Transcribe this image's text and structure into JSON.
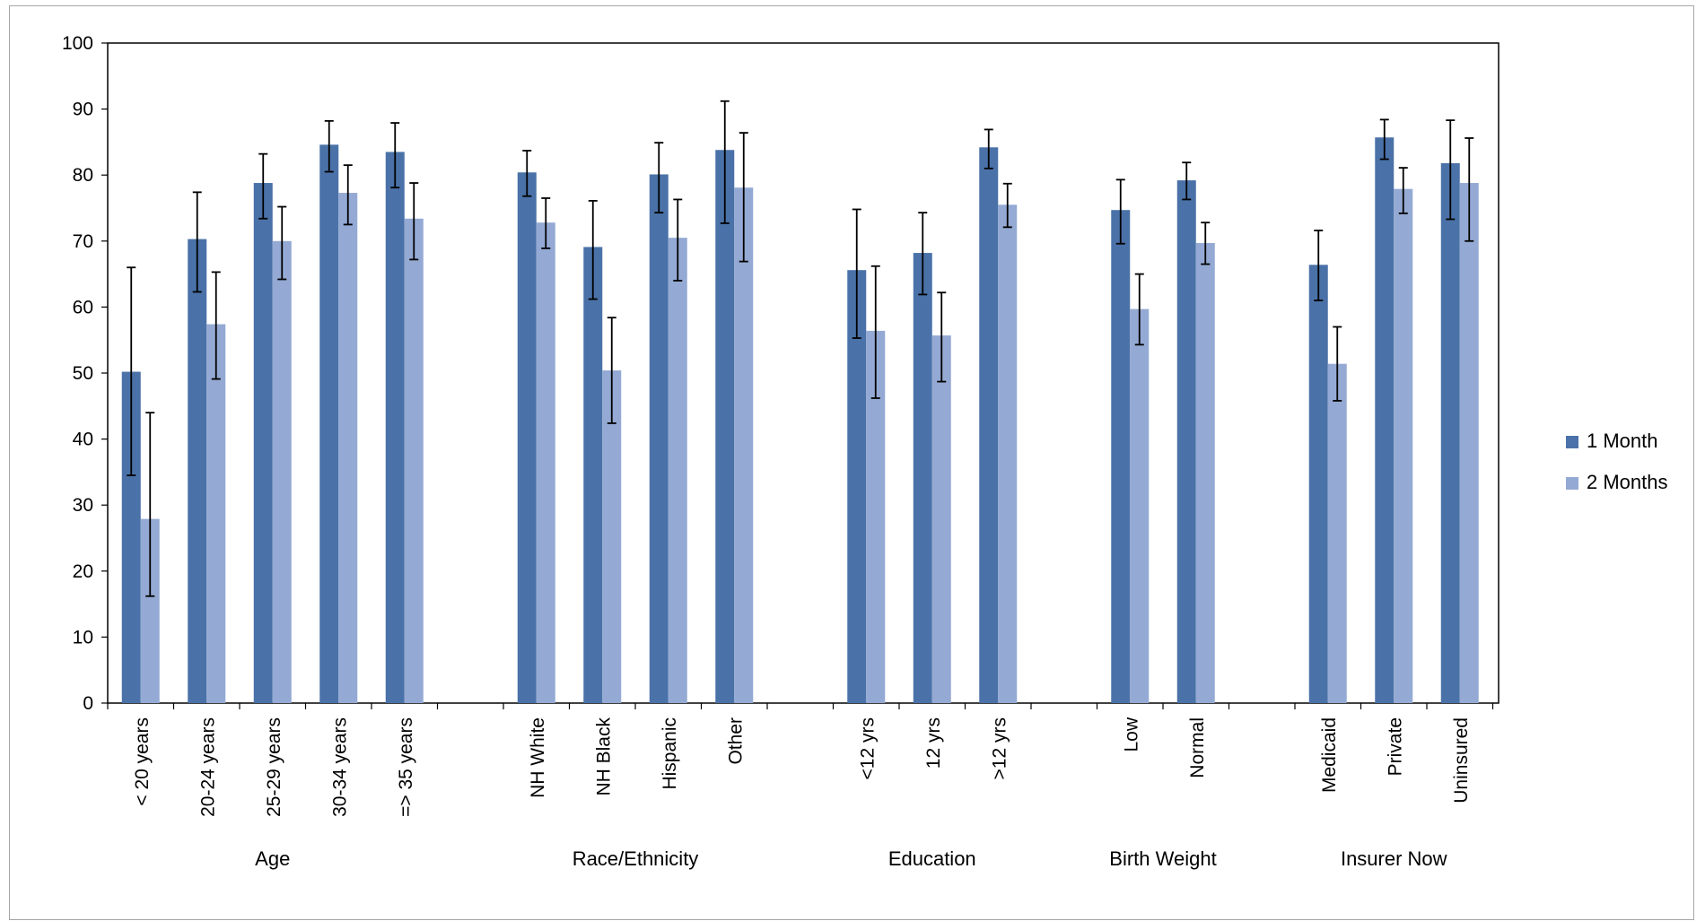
{
  "chart_data": {
    "type": "bar",
    "ylim": [
      0,
      100
    ],
    "yticks": [
      "0",
      "10",
      "20",
      "30",
      "40",
      "50",
      "60",
      "70",
      "80",
      "90",
      "100"
    ],
    "groups": [
      {
        "label": "Age",
        "categories": [
          "< 20 years",
          "20-24 years",
          "25-29 years",
          "30-34 years",
          "=> 35 years"
        ]
      },
      {
        "label": "Race/Ethnicity",
        "categories": [
          "NH White",
          "NH Black",
          "Hispanic",
          "Other"
        ]
      },
      {
        "label": "Education",
        "categories": [
          "<12 yrs",
          "12 yrs",
          ">12 yrs"
        ]
      },
      {
        "label": "Birth Weight",
        "categories": [
          "Low",
          "Normal"
        ]
      },
      {
        "label": "Insurer Now",
        "categories": [
          "Medicaid",
          "Private",
          "Uninsured"
        ]
      }
    ],
    "categories": [
      "< 20 years",
      "20-24 years",
      "25-29 years",
      "30-34 years",
      "=> 35 years",
      "NH White",
      "NH Black",
      "Hispanic",
      "Other",
      "<12 yrs",
      "12 yrs",
      ">12 yrs",
      "Low",
      "Normal",
      "Medicaid",
      "Private",
      "Uninsured"
    ],
    "series": [
      {
        "name": "1 Month",
        "color": "#4a72a8",
        "values": [
          50.2,
          70.3,
          78.8,
          84.6,
          83.5,
          80.4,
          69.1,
          80.1,
          83.8,
          65.6,
          68.2,
          84.2,
          74.7,
          79.2,
          66.4,
          85.7,
          81.8
        ],
        "err_low": [
          34.5,
          62.3,
          73.4,
          80.5,
          78.1,
          76.8,
          61.2,
          74.3,
          72.7,
          55.3,
          61.9,
          81.0,
          69.6,
          76.3,
          61.0,
          82.4,
          73.3
        ],
        "err_high": [
          66.0,
          77.4,
          83.2,
          88.2,
          87.9,
          83.7,
          76.1,
          84.9,
          91.2,
          74.8,
          74.3,
          86.9,
          79.3,
          81.9,
          71.6,
          88.4,
          88.3
        ]
      },
      {
        "name": "2 Months",
        "color": "#94aad4",
        "values": [
          27.9,
          57.4,
          70.0,
          77.3,
          73.4,
          72.8,
          50.4,
          70.5,
          78.1,
          56.4,
          55.7,
          75.5,
          59.7,
          69.7,
          51.4,
          77.9,
          78.8
        ],
        "err_low": [
          16.2,
          49.1,
          64.2,
          72.5,
          67.2,
          68.9,
          42.4,
          64.0,
          66.9,
          46.2,
          48.7,
          72.1,
          54.3,
          66.5,
          45.8,
          74.2,
          70.0
        ],
        "err_high": [
          44.0,
          65.3,
          75.2,
          81.5,
          78.8,
          76.5,
          58.4,
          76.3,
          86.4,
          66.2,
          62.2,
          78.7,
          65.0,
          72.8,
          57.0,
          81.1,
          85.6
        ]
      }
    ],
    "legend": {
      "position": "right"
    },
    "grid": false
  }
}
